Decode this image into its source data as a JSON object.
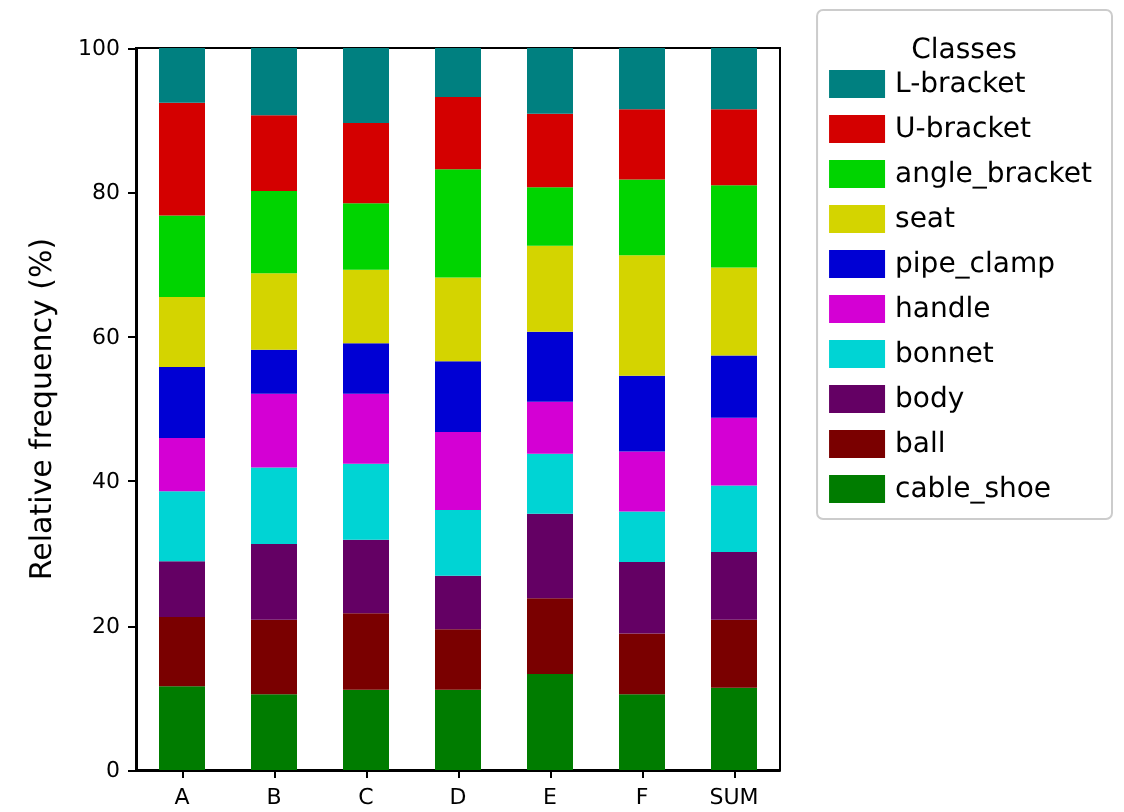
{
  "chart_data": {
    "type": "bar",
    "stacked": true,
    "ylabel": "Relative frequency (%)",
    "legend_title": "Classes",
    "legend": "top right",
    "categories": [
      "A",
      "B",
      "C",
      "D",
      "E",
      "F",
      "SUM"
    ],
    "ylim": [
      0,
      100
    ],
    "yticks": [
      0,
      20,
      40,
      60,
      80,
      100
    ],
    "series": [
      {
        "name": "cable_shoe",
        "color": "#007c00",
        "values": [
          11.6,
          10.5,
          11.1,
          11.1,
          13.3,
          10.5,
          11.4
        ]
      },
      {
        "name": "ball",
        "color": "#7a0000",
        "values": [
          9.6,
          10.3,
          10.6,
          8.4,
          10.5,
          8.4,
          9.4
        ]
      },
      {
        "name": "body",
        "color": "#640064",
        "values": [
          7.7,
          10.5,
          10.2,
          7.4,
          11.7,
          9.9,
          9.4
        ]
      },
      {
        "name": "bonnet",
        "color": "#00d4d4",
        "values": [
          9.7,
          10.6,
          10.5,
          9.1,
          8.3,
          7.0,
          9.2
        ]
      },
      {
        "name": "handle",
        "color": "#d400d4",
        "values": [
          7.4,
          10.2,
          9.7,
          10.8,
          7.2,
          8.3,
          9.4
        ]
      },
      {
        "name": "pipe_clamp",
        "color": "#0000d4",
        "values": [
          9.8,
          6.1,
          7.0,
          9.8,
          9.7,
          10.5,
          8.6
        ]
      },
      {
        "name": "seat",
        "color": "#d4d400",
        "values": [
          9.7,
          10.6,
          10.2,
          11.6,
          11.9,
          16.7,
          12.2
        ]
      },
      {
        "name": "angle_bracket",
        "color": "#00d400",
        "values": [
          11.3,
          11.4,
          9.2,
          15.0,
          8.1,
          10.5,
          11.4
        ]
      },
      {
        "name": "U-bracket",
        "color": "#d40000",
        "values": [
          15.6,
          10.5,
          11.1,
          10.0,
          10.2,
          9.7,
          10.5
        ]
      },
      {
        "name": "L-bracket",
        "color": "#008080",
        "values": [
          7.6,
          9.3,
          10.4,
          6.8,
          9.1,
          8.5,
          8.5
        ]
      }
    ]
  }
}
